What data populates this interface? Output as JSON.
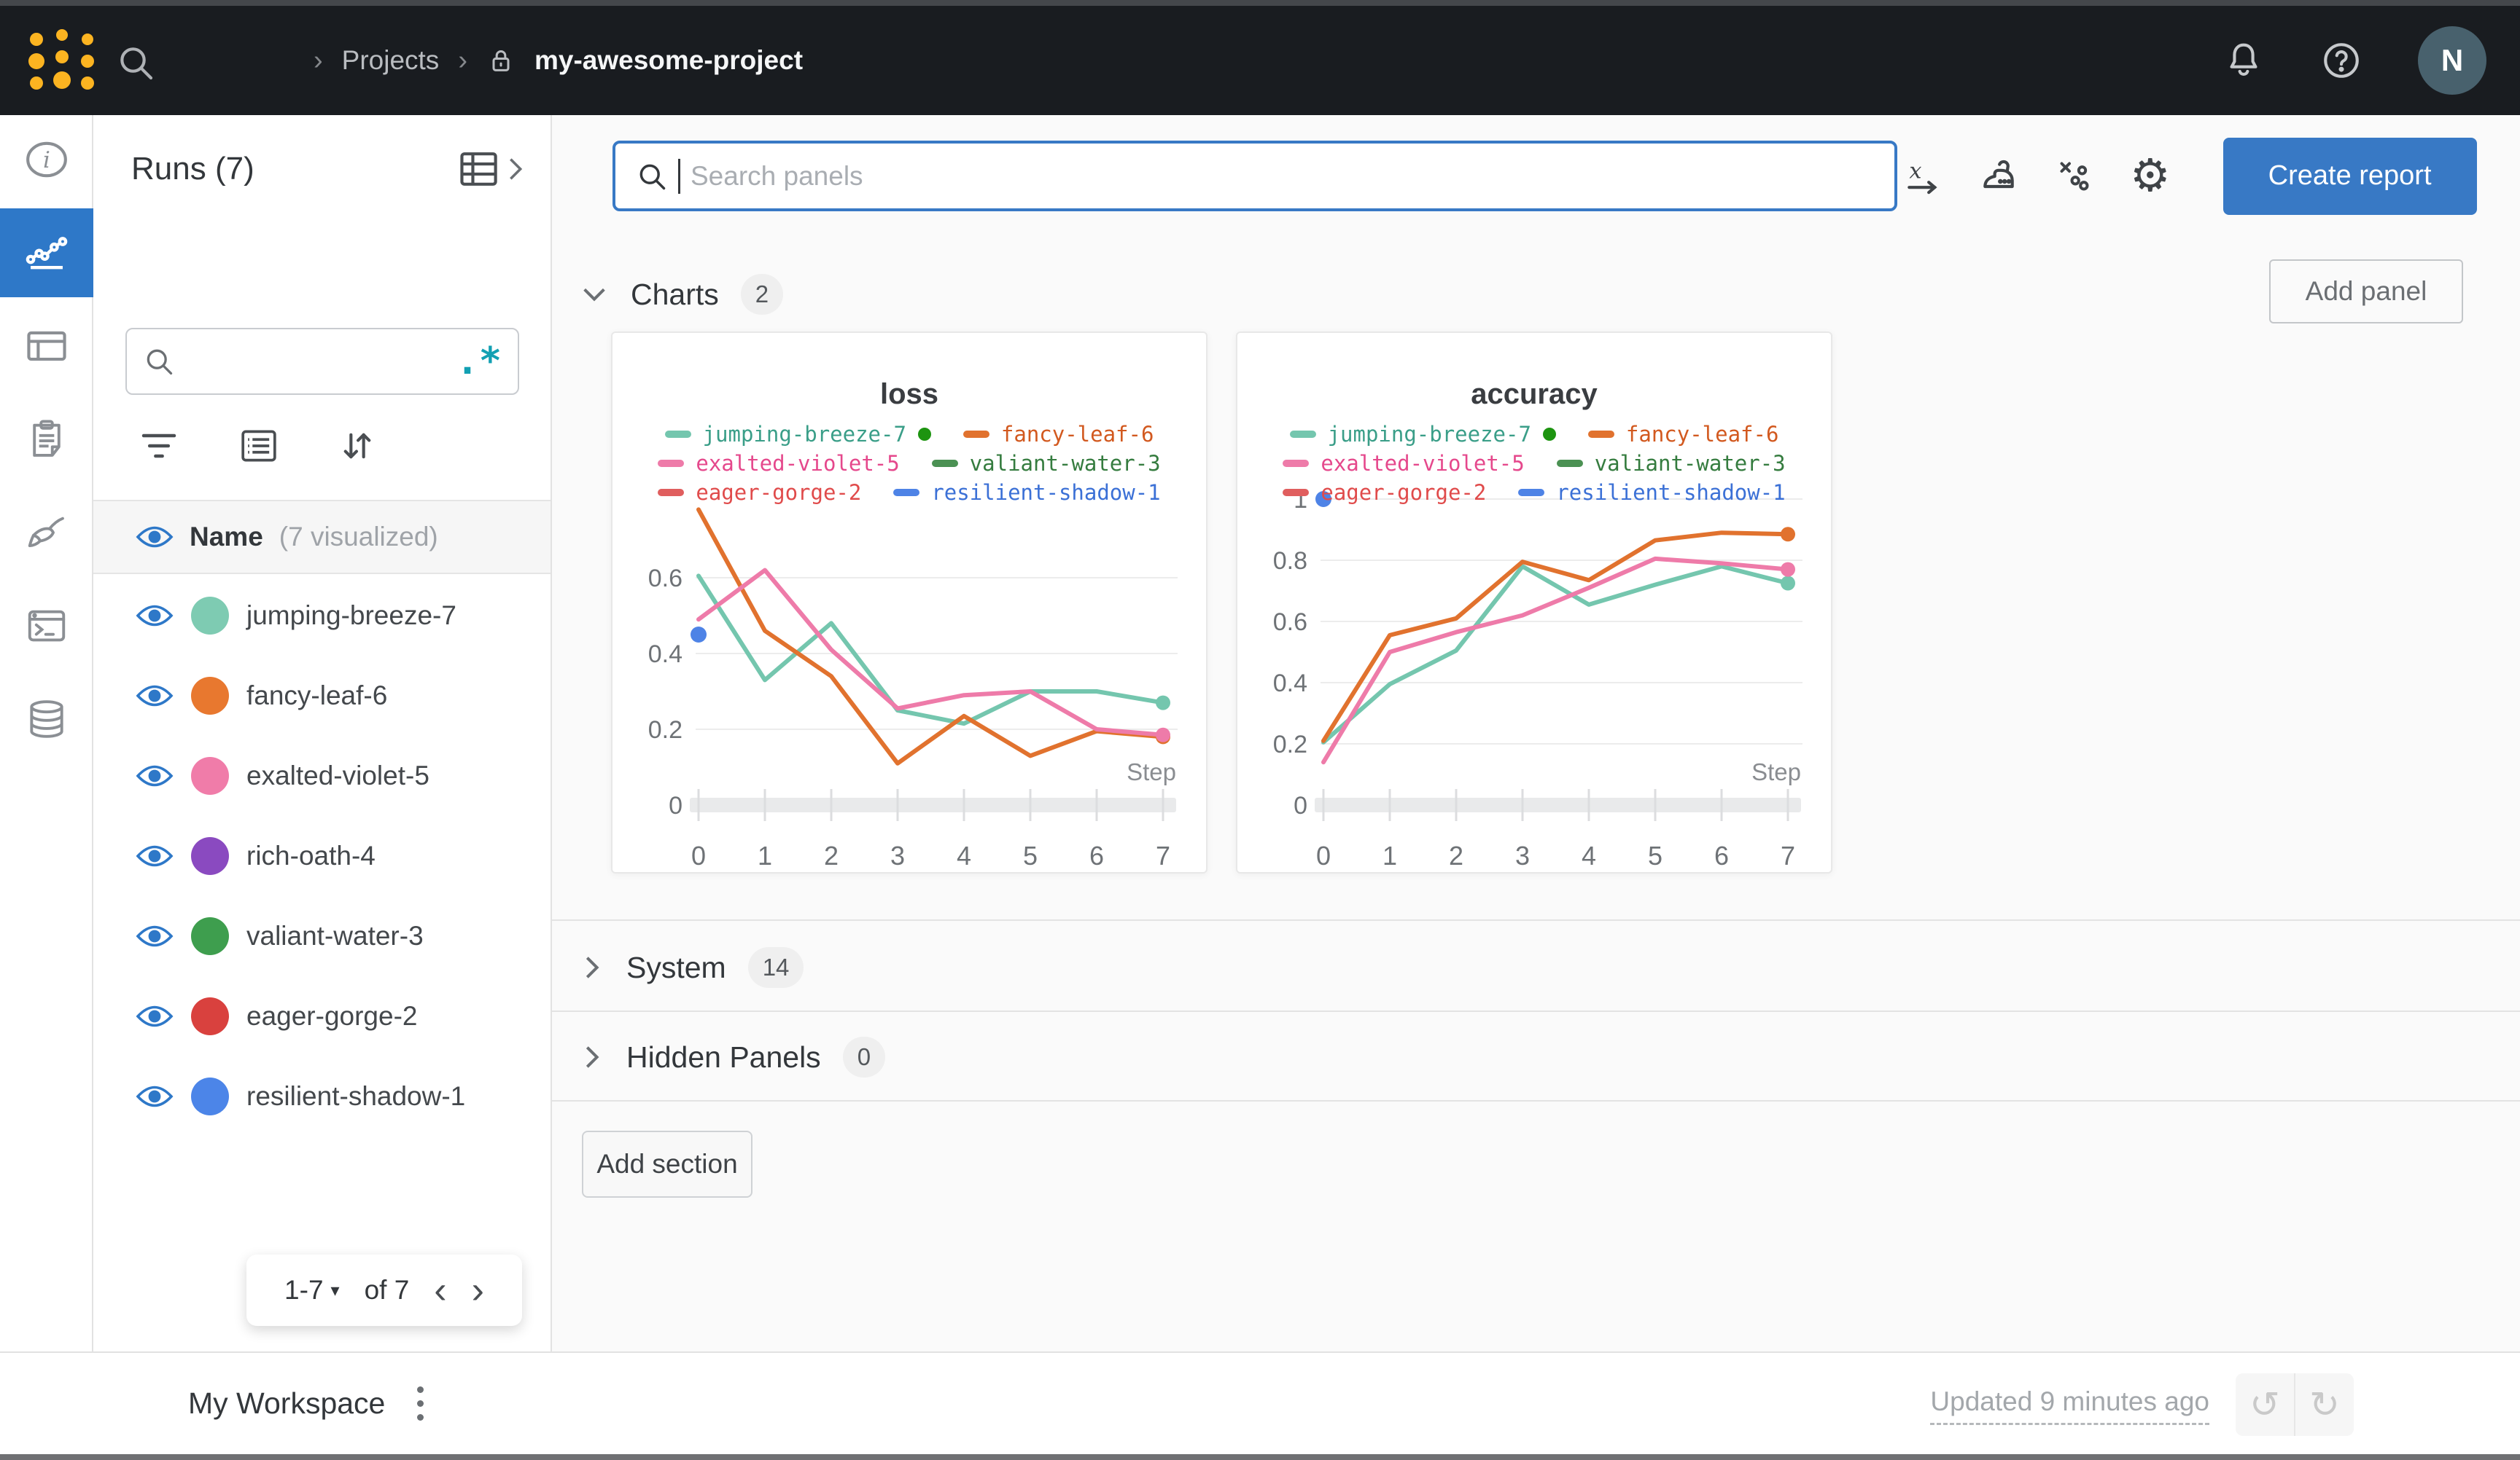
{
  "colors": {
    "accent_blue": "#2e78c8",
    "button_blue": "#3879c5",
    "brand_gold": "#fcb421",
    "topbar_bg": "#191c20",
    "avatar_bg": "#48616d",
    "running_green": "#2e9413",
    "regex_teal": "#12a0b3"
  },
  "topbar": {
    "breadcrumb": [
      {
        "label": "Projects"
      },
      {
        "label": "my-awesome-project",
        "locked": true
      }
    ],
    "avatar_initial": "N",
    "icons": [
      "search-icon",
      "bell-icon",
      "help-icon"
    ]
  },
  "left_rail": {
    "items": [
      {
        "icon": "info-icon",
        "active": false
      },
      {
        "icon": "line-chart-icon",
        "active": true
      },
      {
        "icon": "table-icon",
        "active": false
      },
      {
        "icon": "clipboard-icon",
        "active": false
      },
      {
        "icon": "broom-icon",
        "active": false
      },
      {
        "icon": "terminal-icon",
        "active": false
      },
      {
        "icon": "database-icon",
        "active": false
      }
    ]
  },
  "runs_panel": {
    "title": "Runs (7)",
    "search_placeholder": "",
    "header_name": "Name",
    "header_visualized": "(7 visualized)",
    "runs": [
      {
        "name": "jumping-breeze-7",
        "color": "#7ecbb2",
        "running": true
      },
      {
        "name": "fancy-leaf-6",
        "color": "#e8782f",
        "running": false
      },
      {
        "name": "exalted-violet-5",
        "color": "#f07ca9",
        "running": false
      },
      {
        "name": "rich-oath-4",
        "color": "#8a4ac0",
        "running": false
      },
      {
        "name": "valiant-water-3",
        "color": "#3e9e4e",
        "running": false
      },
      {
        "name": "eager-gorge-2",
        "color": "#d9413e",
        "running": false
      },
      {
        "name": "resilient-shadow-1",
        "color": "#4c85e8",
        "running": false
      }
    ],
    "pagination": {
      "range": "1-7",
      "of": "of 7",
      "prev": "‹",
      "next": "›"
    }
  },
  "main": {
    "panel_search_placeholder": "Search panels",
    "toolbar_icons": [
      "x-axis-icon",
      "smoothing-icon",
      "outliers-icon",
      "settings-gear-icon"
    ],
    "create_report_label": "Create report",
    "sections": {
      "charts": {
        "label": "Charts",
        "count": "2"
      },
      "system": {
        "label": "System",
        "count": "14"
      },
      "hidden": {
        "label": "Hidden Panels",
        "count": "0"
      }
    },
    "add_panel_label": "Add panel",
    "add_section_label": "Add section"
  },
  "footer": {
    "workspace_label": "My Workspace",
    "updated_label": "Updated 9 minutes ago",
    "undo_icon": "↺",
    "redo_icon": "↻"
  },
  "chart_data": [
    {
      "id": "loss",
      "type": "line",
      "title": "loss",
      "xlabel": "Step",
      "x": [
        0,
        1,
        2,
        3,
        4,
        5,
        6,
        7
      ],
      "ylim": [
        0,
        0.8
      ],
      "yticks": [
        0,
        0.2,
        0.4,
        0.6
      ],
      "grid": true,
      "legend_position": "top",
      "series": [
        {
          "name": "jumping-breeze-7",
          "color": "#74c6ae",
          "text_color": "#3a9e88",
          "running": true,
          "end_dot": true,
          "values": [
            0.605,
            0.33,
            0.48,
            0.25,
            0.215,
            0.3,
            0.3,
            0.27
          ]
        },
        {
          "name": "fancy-leaf-6",
          "color": "#e1722e",
          "text_color": "#d2591f",
          "end_dot": true,
          "values": [
            0.78,
            0.46,
            0.34,
            0.11,
            0.235,
            0.13,
            0.195,
            0.18
          ]
        },
        {
          "name": "exalted-violet-5",
          "color": "#ee7ba9",
          "text_color": "#e5488c",
          "end_dot": true,
          "values": [
            0.49,
            0.62,
            0.41,
            0.255,
            0.29,
            0.3,
            0.2,
            0.185
          ]
        },
        {
          "name": "valiant-water-3",
          "color": "#4b9153",
          "text_color": "#357c3f",
          "values": []
        },
        {
          "name": "eager-gorge-2",
          "color": "#e05e5e",
          "text_color": "#e04b4b",
          "values": []
        },
        {
          "name": "resilient-shadow-1",
          "color": "#4e83e6",
          "text_color": "#3b70d6",
          "start_dot": true,
          "values": [
            0.45
          ]
        }
      ]
    },
    {
      "id": "accuracy",
      "type": "line",
      "title": "accuracy",
      "xlabel": "Step",
      "x": [
        0,
        1,
        2,
        3,
        4,
        5,
        6,
        7
      ],
      "ylim": [
        0,
        1.0
      ],
      "yticks": [
        0,
        0.2,
        0.4,
        0.6,
        0.8,
        1
      ],
      "grid": true,
      "legend_position": "top",
      "series": [
        {
          "name": "jumping-breeze-7",
          "color": "#74c6ae",
          "text_color": "#3a9e88",
          "running": true,
          "end_dot": true,
          "values": [
            0.205,
            0.395,
            0.505,
            0.78,
            0.655,
            0.72,
            0.78,
            0.725
          ]
        },
        {
          "name": "fancy-leaf-6",
          "color": "#e1722e",
          "text_color": "#d2591f",
          "end_dot": true,
          "values": [
            0.21,
            0.555,
            0.61,
            0.795,
            0.735,
            0.865,
            0.89,
            0.885
          ]
        },
        {
          "name": "exalted-violet-5",
          "color": "#ee7ba9",
          "text_color": "#e5488c",
          "end_dot": true,
          "values": [
            0.14,
            0.5,
            0.565,
            0.62,
            0.71,
            0.805,
            0.79,
            0.77
          ]
        },
        {
          "name": "valiant-water-3",
          "color": "#4b9153",
          "text_color": "#357c3f",
          "values": []
        },
        {
          "name": "eager-gorge-2",
          "color": "#e05e5e",
          "text_color": "#e04b4b",
          "values": []
        },
        {
          "name": "resilient-shadow-1",
          "color": "#4e83e6",
          "text_color": "#3b70d6",
          "start_dot": true,
          "values": [
            1.0
          ]
        }
      ]
    }
  ]
}
